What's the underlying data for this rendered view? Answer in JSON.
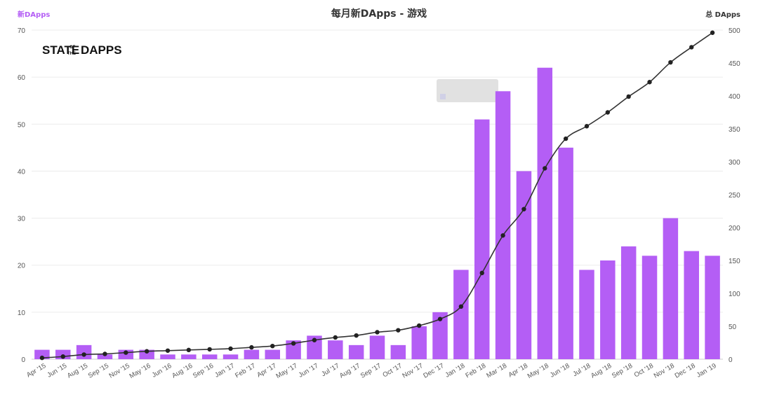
{
  "chart_data": {
    "type": "bar+line",
    "title": "每月新DApps - 游戏",
    "left_axis_label": "新DApps",
    "right_axis_label": "总 DApps",
    "ylim_left": [
      0,
      70
    ],
    "ylim_right": [
      0,
      500
    ],
    "yticks_left": [
      "0",
      "10",
      "20",
      "30",
      "40",
      "50",
      "60",
      "70"
    ],
    "yticks_right": [
      "0",
      "50",
      "100",
      "150",
      "200",
      "250",
      "300",
      "350",
      "400",
      "450",
      "500"
    ],
    "grid": true,
    "logo": {
      "line1": "STATE",
      "of": "OF",
      "the": "THE",
      "line2": "DAPPS"
    },
    "categories": [
      "Apr '15",
      "Jun '15",
      "Aug '15",
      "Sep '15",
      "Nov '15",
      "May '16",
      "Jun '16",
      "Aug '16",
      "Sep '16",
      "Jan '17",
      "Feb '17",
      "Apr '17",
      "May '17",
      "Jun '17",
      "Jul '17",
      "Aug '17",
      "Sep '17",
      "Oct '17",
      "Nov '17",
      "Dec '17",
      "Jan '18",
      "Feb '18",
      "Mar '18",
      "Apr '18",
      "May '18",
      "Jun '18",
      "Jul '18",
      "Aug '18",
      "Sep '18",
      "Oct '18",
      "Nov '18",
      "Dec '18",
      "Jan '19"
    ],
    "series": [
      {
        "kind": "bar",
        "axis": "left",
        "color": "#b45ef5",
        "values": [
          2,
          2,
          3,
          1,
          2,
          2,
          1,
          1,
          1,
          1,
          2,
          2,
          4,
          5,
          4,
          3,
          5,
          3,
          7,
          10,
          19,
          51,
          57,
          40,
          62,
          45,
          19,
          21,
          24,
          22,
          30,
          23,
          22
        ]
      },
      {
        "kind": "line",
        "axis": "right",
        "color": "#333333",
        "values": [
          2,
          4,
          7,
          8,
          10,
          12,
          13,
          14,
          15,
          16,
          18,
          20,
          24,
          29,
          33,
          36,
          41,
          44,
          51,
          61,
          80,
          131,
          188,
          228,
          290,
          335,
          354,
          375,
          399,
          421,
          451,
          474,
          496
        ]
      }
    ]
  }
}
